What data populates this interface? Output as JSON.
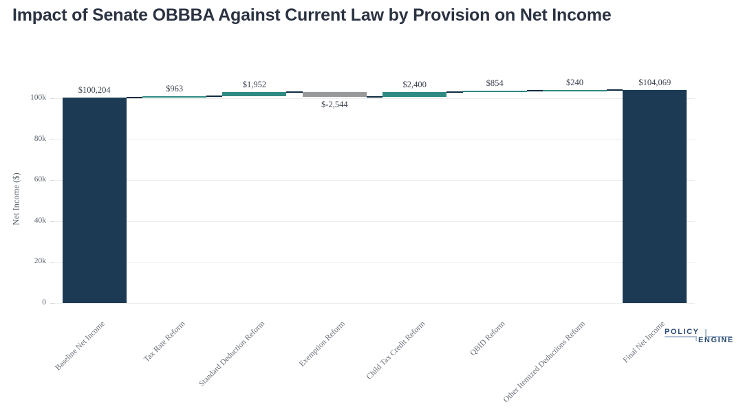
{
  "title": "Impact of Senate OBBBA Against Current Law by Provision on Net Income",
  "logo": {
    "top_word": "POLICY",
    "bottom_word": "ENGINE"
  },
  "chart_data": {
    "type": "waterfall-bar",
    "title": "Impact of Senate OBBBA Against Current Law by Provision on Net Income",
    "xlabel": "",
    "ylabel": "Net Income ($)",
    "ylim": [
      0,
      110000
    ],
    "grid": true,
    "legend": "none",
    "yticks": [
      {
        "label": "0",
        "value": 0
      },
      {
        "label": "20k",
        "value": 20000
      },
      {
        "label": "40k",
        "value": 40000
      },
      {
        "label": "60k",
        "value": 60000
      },
      {
        "label": "80k",
        "value": 80000
      },
      {
        "label": "100k",
        "value": 100000
      }
    ],
    "categories": [
      "Baseline Net Income",
      "Tax Rate Reform",
      "Standard Deduction Reform",
      "Exemption Reform",
      "Child Tax Credit Reform",
      "QBID Reform",
      "Other Itemized Deductions Reform",
      "Final Net Income"
    ],
    "bars": [
      {
        "category": "Baseline Net Income",
        "value": 100204,
        "display": "$100,204",
        "kind": "total",
        "start": 0,
        "end": 100204
      },
      {
        "category": "Tax Rate Reform",
        "value": 963,
        "display": "$963",
        "kind": "increase",
        "start": 100204,
        "end": 101167
      },
      {
        "category": "Standard Deduction Reform",
        "value": 1952,
        "display": "$1,952",
        "kind": "increase",
        "start": 101167,
        "end": 103119
      },
      {
        "category": "Exemption Reform",
        "value": -2544,
        "display": "$-2,544",
        "kind": "decrease",
        "start": 103119,
        "end": 100575
      },
      {
        "category": "Child Tax Credit Reform",
        "value": 2400,
        "display": "$2,400",
        "kind": "increase",
        "start": 100575,
        "end": 102975
      },
      {
        "category": "QBID Reform",
        "value": 854,
        "display": "$854",
        "kind": "increase",
        "start": 102975,
        "end": 103829
      },
      {
        "category": "Other Itemized Deductions Reform",
        "value": 240,
        "display": "$240",
        "kind": "increase",
        "start": 103829,
        "end": 104069
      },
      {
        "category": "Final Net Income",
        "value": 104069,
        "display": "$104,069",
        "kind": "total",
        "start": 0,
        "end": 104069
      }
    ],
    "colors": {
      "total": "#1c3a53",
      "increase": "#2e8a82",
      "decrease": "#97999b",
      "connector": "#0e2a42",
      "gridline": "#ececec",
      "title_text": "#2b3342",
      "axis_text": "#5d6470",
      "value_label_text": "#3d4350"
    }
  }
}
